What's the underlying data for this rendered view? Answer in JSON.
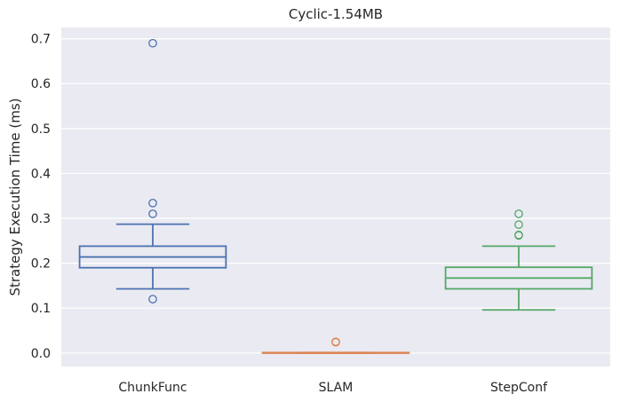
{
  "chart_data": {
    "type": "box",
    "title": "Cyclic-1.54MB",
    "xlabel": "",
    "ylabel": "Strategy Execution Time (ms)",
    "ylim": [
      -0.03,
      0.725
    ],
    "yticks": [
      0.0,
      0.1,
      0.2,
      0.3,
      0.4,
      0.5,
      0.6,
      0.7
    ],
    "ytick_labels": [
      "0.0",
      "0.1",
      "0.2",
      "0.3",
      "0.4",
      "0.5",
      "0.6",
      "0.7"
    ],
    "grid": true,
    "background": "#eaeaf2",
    "categories": [
      "ChunkFunc",
      "SLAM",
      "StepConf"
    ],
    "boxes": [
      {
        "whisker_low": 0.143,
        "q1": 0.19,
        "median": 0.214,
        "q3": 0.238,
        "whisker_high": 0.287,
        "outliers": [
          0.12,
          0.31,
          0.334,
          0.69
        ],
        "color": "#4c72b0"
      },
      {
        "whisker_low": 0.0,
        "q1": 0.0,
        "median": 0.0,
        "q3": 0.001,
        "whisker_high": 0.001,
        "outliers": [
          0.024,
          0.025
        ],
        "color": "#dd8452"
      },
      {
        "whisker_low": 0.096,
        "q1": 0.143,
        "median": 0.167,
        "q3": 0.191,
        "whisker_high": 0.238,
        "outliers": [
          0.262,
          0.263,
          0.286,
          0.31
        ],
        "color": "#55a868"
      }
    ]
  }
}
